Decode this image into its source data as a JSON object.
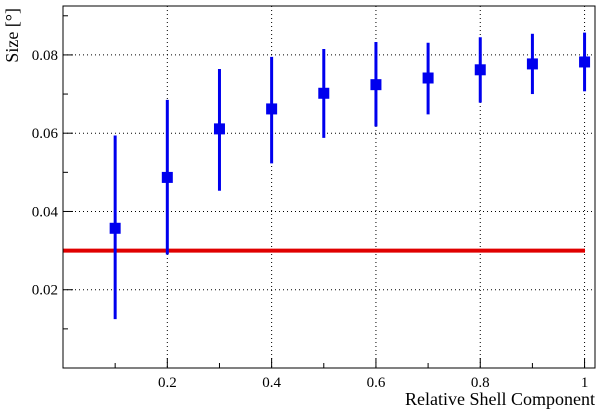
{
  "chart_data": {
    "type": "scatter",
    "xlabel": "Relative Shell Component",
    "ylabel": "Size [°]",
    "xlim": [
      0.0,
      1.02
    ],
    "ylim": [
      0.0,
      0.0925
    ],
    "x_ticks": [
      0.2,
      0.4,
      0.6,
      0.8,
      1
    ],
    "x_tick_labels": [
      "0.2",
      "0.4",
      "0.6",
      "0.8",
      "1"
    ],
    "y_ticks": [
      0.02,
      0.04,
      0.06,
      0.08
    ],
    "y_tick_labels": [
      "0.02",
      "0.04",
      "0.06",
      "0.08"
    ],
    "grid": true,
    "series": [
      {
        "color": "#0000ee",
        "marker": "square",
        "x": [
          0.1,
          0.2,
          0.3,
          0.4,
          0.5,
          0.6,
          0.7,
          0.8,
          0.9,
          1.0
        ],
        "y": [
          0.0357,
          0.0487,
          0.0611,
          0.0662,
          0.0702,
          0.0724,
          0.0741,
          0.0762,
          0.0777,
          0.0782
        ],
        "y_low": [
          0.0125,
          0.029,
          0.0453,
          0.0523,
          0.0588,
          0.0617,
          0.0648,
          0.0678,
          0.07,
          0.0707
        ],
        "y_high": [
          0.0594,
          0.0685,
          0.0764,
          0.0795,
          0.0815,
          0.0833,
          0.0831,
          0.0845,
          0.0854,
          0.0857
        ]
      }
    ],
    "reference_line": {
      "y": 0.03,
      "color": "#e00000"
    }
  }
}
